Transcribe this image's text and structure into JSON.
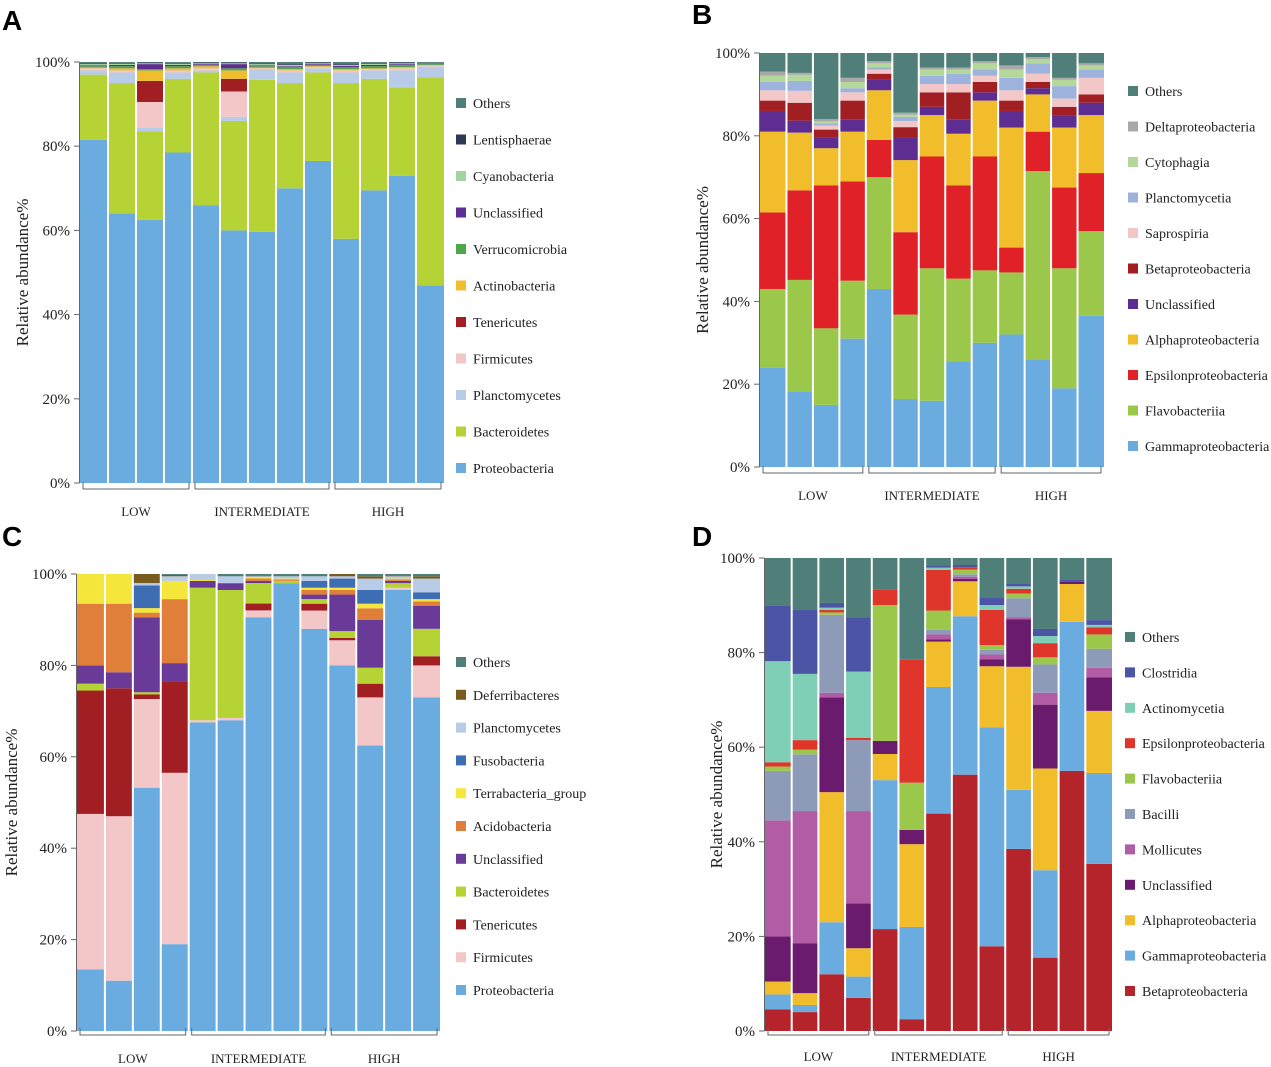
{
  "chart_data": [
    {
      "type": "bar",
      "stacked": true,
      "panel": "A",
      "ylabel": "Relative abundance%",
      "ylim": [
        0,
        100
      ],
      "yticks": [
        "0%",
        "20%",
        "40%",
        "60%",
        "80%",
        "100%"
      ],
      "groups": [
        {
          "label": "LOW",
          "n": 4
        },
        {
          "label": "INTERMEDIATE",
          "n": 5
        },
        {
          "label": "HIGH",
          "n": 4
        }
      ],
      "series": [
        {
          "name": "Proteobacteria",
          "color": "#6aace0",
          "values": [
            81.5,
            64,
            62.5,
            78.5,
            66,
            60,
            59.5,
            70,
            76.5,
            58,
            69.5,
            73,
            47
          ]
        },
        {
          "name": "Bacteroidetes",
          "color": "#b5d334",
          "values": [
            15.5,
            31,
            21,
            17.5,
            31.5,
            26,
            36,
            25,
            21,
            37,
            26.5,
            21,
            49.5
          ]
        },
        {
          "name": "Planctomycetes",
          "color": "#b8cce8",
          "values": [
            1,
            2.5,
            1,
            1.5,
            0.5,
            1,
            2.5,
            2.5,
            1,
            2.5,
            2,
            4,
            2.5
          ]
        },
        {
          "name": "Firmicutes",
          "color": "#f3c6c8",
          "values": [
            0.5,
            0.5,
            6,
            0.5,
            0.5,
            6,
            0.2,
            0.5,
            0.3,
            0.5,
            0.3,
            0.5,
            0.2
          ]
        },
        {
          "name": "Tenericutes",
          "color": "#a11e23",
          "values": [
            0,
            0,
            5,
            0,
            0,
            3,
            0,
            0,
            0,
            0,
            0,
            0,
            0
          ]
        },
        {
          "name": "Actinobacteria",
          "color": "#f0bd2f",
          "values": [
            0.2,
            0.5,
            2.5,
            0.5,
            0.5,
            2,
            0.2,
            0.3,
            0.2,
            0.3,
            0.2,
            0.3,
            0.2
          ]
        },
        {
          "name": "Verrucomicrobia",
          "color": "#4ea84a",
          "values": [
            0.3,
            0.5,
            0.3,
            0.5,
            0.3,
            0.5,
            0.3,
            0.5,
            0.3,
            0.5,
            0.5,
            0.5,
            0.2
          ]
        },
        {
          "name": "Unclassified",
          "color": "#5e2d91",
          "values": [
            0.2,
            0.3,
            1.2,
            0.3,
            0.2,
            1,
            0.2,
            0.2,
            0.2,
            0.3,
            0.3,
            0.2,
            0.2
          ]
        },
        {
          "name": "Cyanobacteria",
          "color": "#a3d3a0",
          "values": [
            0.3,
            0.3,
            0.2,
            0.3,
            0.2,
            0.2,
            0.3,
            0.3,
            0.2,
            0.2,
            0.3,
            0.2,
            0.1
          ]
        },
        {
          "name": "Lentisphaerae",
          "color": "#2c3a55",
          "values": [
            0.2,
            0.2,
            0.2,
            0.2,
            0.2,
            0.2,
            0.2,
            0.2,
            0.2,
            0.2,
            0.2,
            0.2,
            0.1
          ]
        },
        {
          "name": "Others",
          "color": "#4f7f78",
          "values": [
            0.3,
            0.2,
            0.1,
            0.2,
            0.1,
            0.1,
            0.3,
            0.5,
            0.1,
            0.5,
            0.2,
            0.1,
            0.1
          ]
        }
      ]
    },
    {
      "type": "bar",
      "stacked": true,
      "panel": "B",
      "ylabel": "Relative abundance%",
      "ylim": [
        0,
        100
      ],
      "yticks": [
        "0%",
        "20%",
        "40%",
        "60%",
        "80%",
        "100%"
      ],
      "groups": [
        {
          "label": "LOW",
          "n": 4
        },
        {
          "label": "INTERMEDIATE",
          "n": 5
        },
        {
          "label": "HIGH",
          "n": 4
        }
      ],
      "series": [
        {
          "name": "Gammaproteobacteria",
          "color": "#6aace0",
          "values": [
            24,
            19,
            15,
            31,
            43,
            16.5,
            16,
            25.5,
            30,
            32,
            26,
            19,
            36.5
          ]
        },
        {
          "name": "Flavobacteriia",
          "color": "#9bc84a",
          "values": [
            19,
            28,
            18.5,
            14,
            27,
            20.5,
            32,
            20,
            17.5,
            15,
            45.5,
            29,
            20.5
          ]
        },
        {
          "name": "Epsilonproteobacteria",
          "color": "#e02127",
          "values": [
            18.5,
            22.5,
            34.5,
            24,
            9,
            20,
            27,
            22.5,
            27.5,
            6,
            9.5,
            19.5,
            14
          ]
        },
        {
          "name": "Alphaproteobacteria",
          "color": "#f2bd2a",
          "values": [
            19.5,
            14.5,
            9,
            12,
            12,
            17.5,
            10,
            12.5,
            13.5,
            29,
            9,
            14.5,
            14
          ]
        },
        {
          "name": "Unclassified",
          "color": "#5e2d91",
          "values": [
            5,
            3,
            2.5,
            3,
            2.5,
            5.5,
            2,
            3.5,
            2,
            4,
            1.5,
            3,
            3
          ]
        },
        {
          "name": "Betaproteobacteria",
          "color": "#a11e23",
          "values": [
            2.5,
            4.5,
            2,
            4.5,
            1.5,
            2.5,
            3.5,
            6.5,
            2.5,
            2.5,
            1.5,
            2,
            2
          ]
        },
        {
          "name": "Saprospiria",
          "color": "#f3c6c8",
          "values": [
            2.5,
            3,
            1,
            2,
            1,
            1.5,
            2,
            2,
            1.5,
            2.5,
            2,
            2,
            4
          ]
        },
        {
          "name": "Planctomycetia",
          "color": "#9db3dd",
          "values": [
            2,
            2.5,
            0.5,
            1,
            0.5,
            1,
            2,
            2.5,
            1.5,
            3,
            2.5,
            3,
            2
          ]
        },
        {
          "name": "Cytophagia",
          "color": "#b3d899",
          "values": [
            1.5,
            1.5,
            0.5,
            1.5,
            1,
            0.5,
            1.5,
            1,
            1.5,
            2,
            1,
            1.5,
            1
          ]
        },
        {
          "name": "Deltaproteobacteria",
          "color": "#a9a9a9",
          "values": [
            1,
            0.5,
            0.5,
            1,
            0.5,
            0.5,
            0.5,
            0.5,
            0.5,
            1,
            0.5,
            0.5,
            0.5
          ]
        },
        {
          "name": "Others",
          "color": "#4f7f78",
          "values": [
            4.5,
            5,
            16,
            6,
            2,
            14.5,
            3.5,
            3.5,
            2,
            3,
            1,
            6,
            2.5
          ]
        }
      ]
    },
    {
      "type": "bar",
      "stacked": true,
      "panel": "C",
      "ylabel": "Relative abundance%",
      "ylim": [
        0,
        100
      ],
      "yticks": [
        "0%",
        "20%",
        "40%",
        "60%",
        "80%",
        "100%"
      ],
      "groups": [
        {
          "label": "LOW",
          "n": 4
        },
        {
          "label": "INTERMEDIATE",
          "n": 5
        },
        {
          "label": "HIGH",
          "n": 4
        }
      ],
      "series": [
        {
          "name": "Proteobacteria",
          "color": "#6aace0",
          "values": [
            13.5,
            11,
            53.5,
            19,
            67.5,
            68,
            91,
            98,
            88,
            80,
            62.5,
            96.5,
            73
          ]
        },
        {
          "name": "Firmicutes",
          "color": "#f3c6c8",
          "values": [
            34,
            36,
            19.5,
            37.5,
            0.5,
            0.5,
            1.5,
            0,
            4,
            5.5,
            10.5,
            0.5,
            7
          ]
        },
        {
          "name": "Tenericutes",
          "color": "#a11e23",
          "values": [
            27,
            28,
            1,
            20,
            0,
            0,
            1.5,
            0,
            1.5,
            0.5,
            3,
            0,
            2
          ]
        },
        {
          "name": "Bacteroidetes",
          "color": "#b5d334",
          "values": [
            1.5,
            0,
            0.5,
            0,
            29,
            28,
            4.5,
            0.5,
            1,
            1.5,
            3.5,
            1,
            6
          ]
        },
        {
          "name": "Unclassified",
          "color": "#6a3a98",
          "values": [
            4,
            3.5,
            16.5,
            4,
            1.5,
            1.5,
            0.5,
            0,
            1,
            8,
            10.5,
            0.5,
            5
          ]
        },
        {
          "name": "Acidobacteria",
          "color": "#e07f3a",
          "values": [
            13.5,
            15,
            1,
            14,
            0,
            0,
            0.5,
            0.3,
            1,
            1,
            2.5,
            0.3,
            1
          ]
        },
        {
          "name": "Terrabacteria_group",
          "color": "#f5e63c",
          "values": [
            6.5,
            6.5,
            1,
            4,
            0.2,
            0,
            0.3,
            0.2,
            0.5,
            0.5,
            1,
            0.2,
            0.5
          ]
        },
        {
          "name": "Fusobacteria",
          "color": "#3d6db3",
          "values": [
            0,
            0,
            5,
            0,
            0,
            0,
            0,
            0,
            1.5,
            2,
            3,
            0,
            1.5
          ]
        },
        {
          "name": "Planctomycetes",
          "color": "#b8cce8",
          "values": [
            0,
            0,
            0.5,
            1,
            1.3,
            1.5,
            0.2,
            0.5,
            1,
            0.5,
            2.5,
            0.5,
            3
          ]
        },
        {
          "name": "Deferribacteres",
          "color": "#7a5b1f",
          "values": [
            0,
            0,
            2,
            0.3,
            0,
            0,
            0.2,
            0,
            0,
            0.5,
            0.5,
            0.2,
            0.5
          ]
        },
        {
          "name": "Others",
          "color": "#4f7f78",
          "values": [
            0,
            0,
            0,
            0.2,
            0,
            0.5,
            0.3,
            0.5,
            0.5,
            0,
            0.5,
            0.3,
            0.5
          ]
        }
      ]
    },
    {
      "type": "bar",
      "stacked": true,
      "panel": "D",
      "ylabel": "Relative abundance%",
      "ylim": [
        0,
        100
      ],
      "yticks": [
        "0%",
        "20%",
        "40%",
        "60%",
        "80%",
        "100%"
      ],
      "groups": [
        {
          "label": "LOW",
          "n": 4
        },
        {
          "label": "INTERMEDIATE",
          "n": 5
        },
        {
          "label": "HIGH",
          "n": 4
        }
      ],
      "series": [
        {
          "name": "Betaproteobacteria",
          "color": "#b5242a",
          "values": [
            5,
            4,
            12,
            7,
            19.5,
            2.5,
            45.5,
            55,
            18,
            38.5,
            15.5,
            55,
            35
          ]
        },
        {
          "name": "Gammaproteobacteria",
          "color": "#6aace0",
          "values": [
            3.5,
            1.5,
            11,
            4.5,
            28.5,
            19.5,
            26.5,
            34,
            46.5,
            12.5,
            18.5,
            31.5,
            19
          ]
        },
        {
          "name": "Alphaproteobacteria",
          "color": "#f2bd2a",
          "values": [
            3,
            2.5,
            27.5,
            6,
            5,
            17.5,
            9.5,
            7.5,
            13,
            26,
            21.5,
            8,
            13
          ]
        },
        {
          "name": "Unclassified",
          "color": "#6b1b6d",
          "values": [
            10.5,
            10.5,
            20,
            9.5,
            2.5,
            3,
            0.5,
            0.5,
            1.5,
            10,
            13.5,
            0.5,
            7
          ]
        },
        {
          "name": "Mollicutes",
          "color": "#b35ca6",
          "values": [
            27,
            28,
            1,
            19.5,
            0,
            0,
            1,
            0.5,
            1,
            0.5,
            2.5,
            0,
            2
          ]
        },
        {
          "name": "Bacilli",
          "color": "#8e9bb8",
          "values": [
            11.5,
            12,
            16.5,
            15,
            0,
            0,
            1,
            0.5,
            1,
            4,
            6,
            0,
            4
          ]
        },
        {
          "name": "Flavobacteriia",
          "color": "#9bc84a",
          "values": [
            1,
            1,
            0.5,
            0,
            26,
            10,
            4,
            1,
            1,
            1,
            1.5,
            0,
            3
          ]
        },
        {
          "name": "Epsilonproteobacteria",
          "color": "#e0352a",
          "values": [
            1,
            2,
            0.5,
            0.5,
            3,
            26,
            8.5,
            0.5,
            7.5,
            1,
            3,
            0,
            1.5
          ]
        },
        {
          "name": "Actinomycetia",
          "color": "#7fcfb6",
          "values": [
            23.5,
            14,
            0.5,
            14,
            0,
            0,
            0.5,
            0,
            1,
            0.5,
            1.5,
            0,
            0.5
          ]
        },
        {
          "name": "Clostridia",
          "color": "#4c54a6",
          "values": [
            13,
            13.5,
            1,
            11.5,
            0,
            0,
            0.5,
            0.5,
            1.5,
            0.5,
            1.5,
            0.5,
            1
          ]
        },
        {
          "name": "Others",
          "color": "#4f7f78",
          "values": [
            11,
            11,
            9.5,
            12.5,
            6,
            21.5,
            1.5,
            1.5,
            8.5,
            5.5,
            15,
            4.5,
            13
          ]
        }
      ]
    }
  ]
}
